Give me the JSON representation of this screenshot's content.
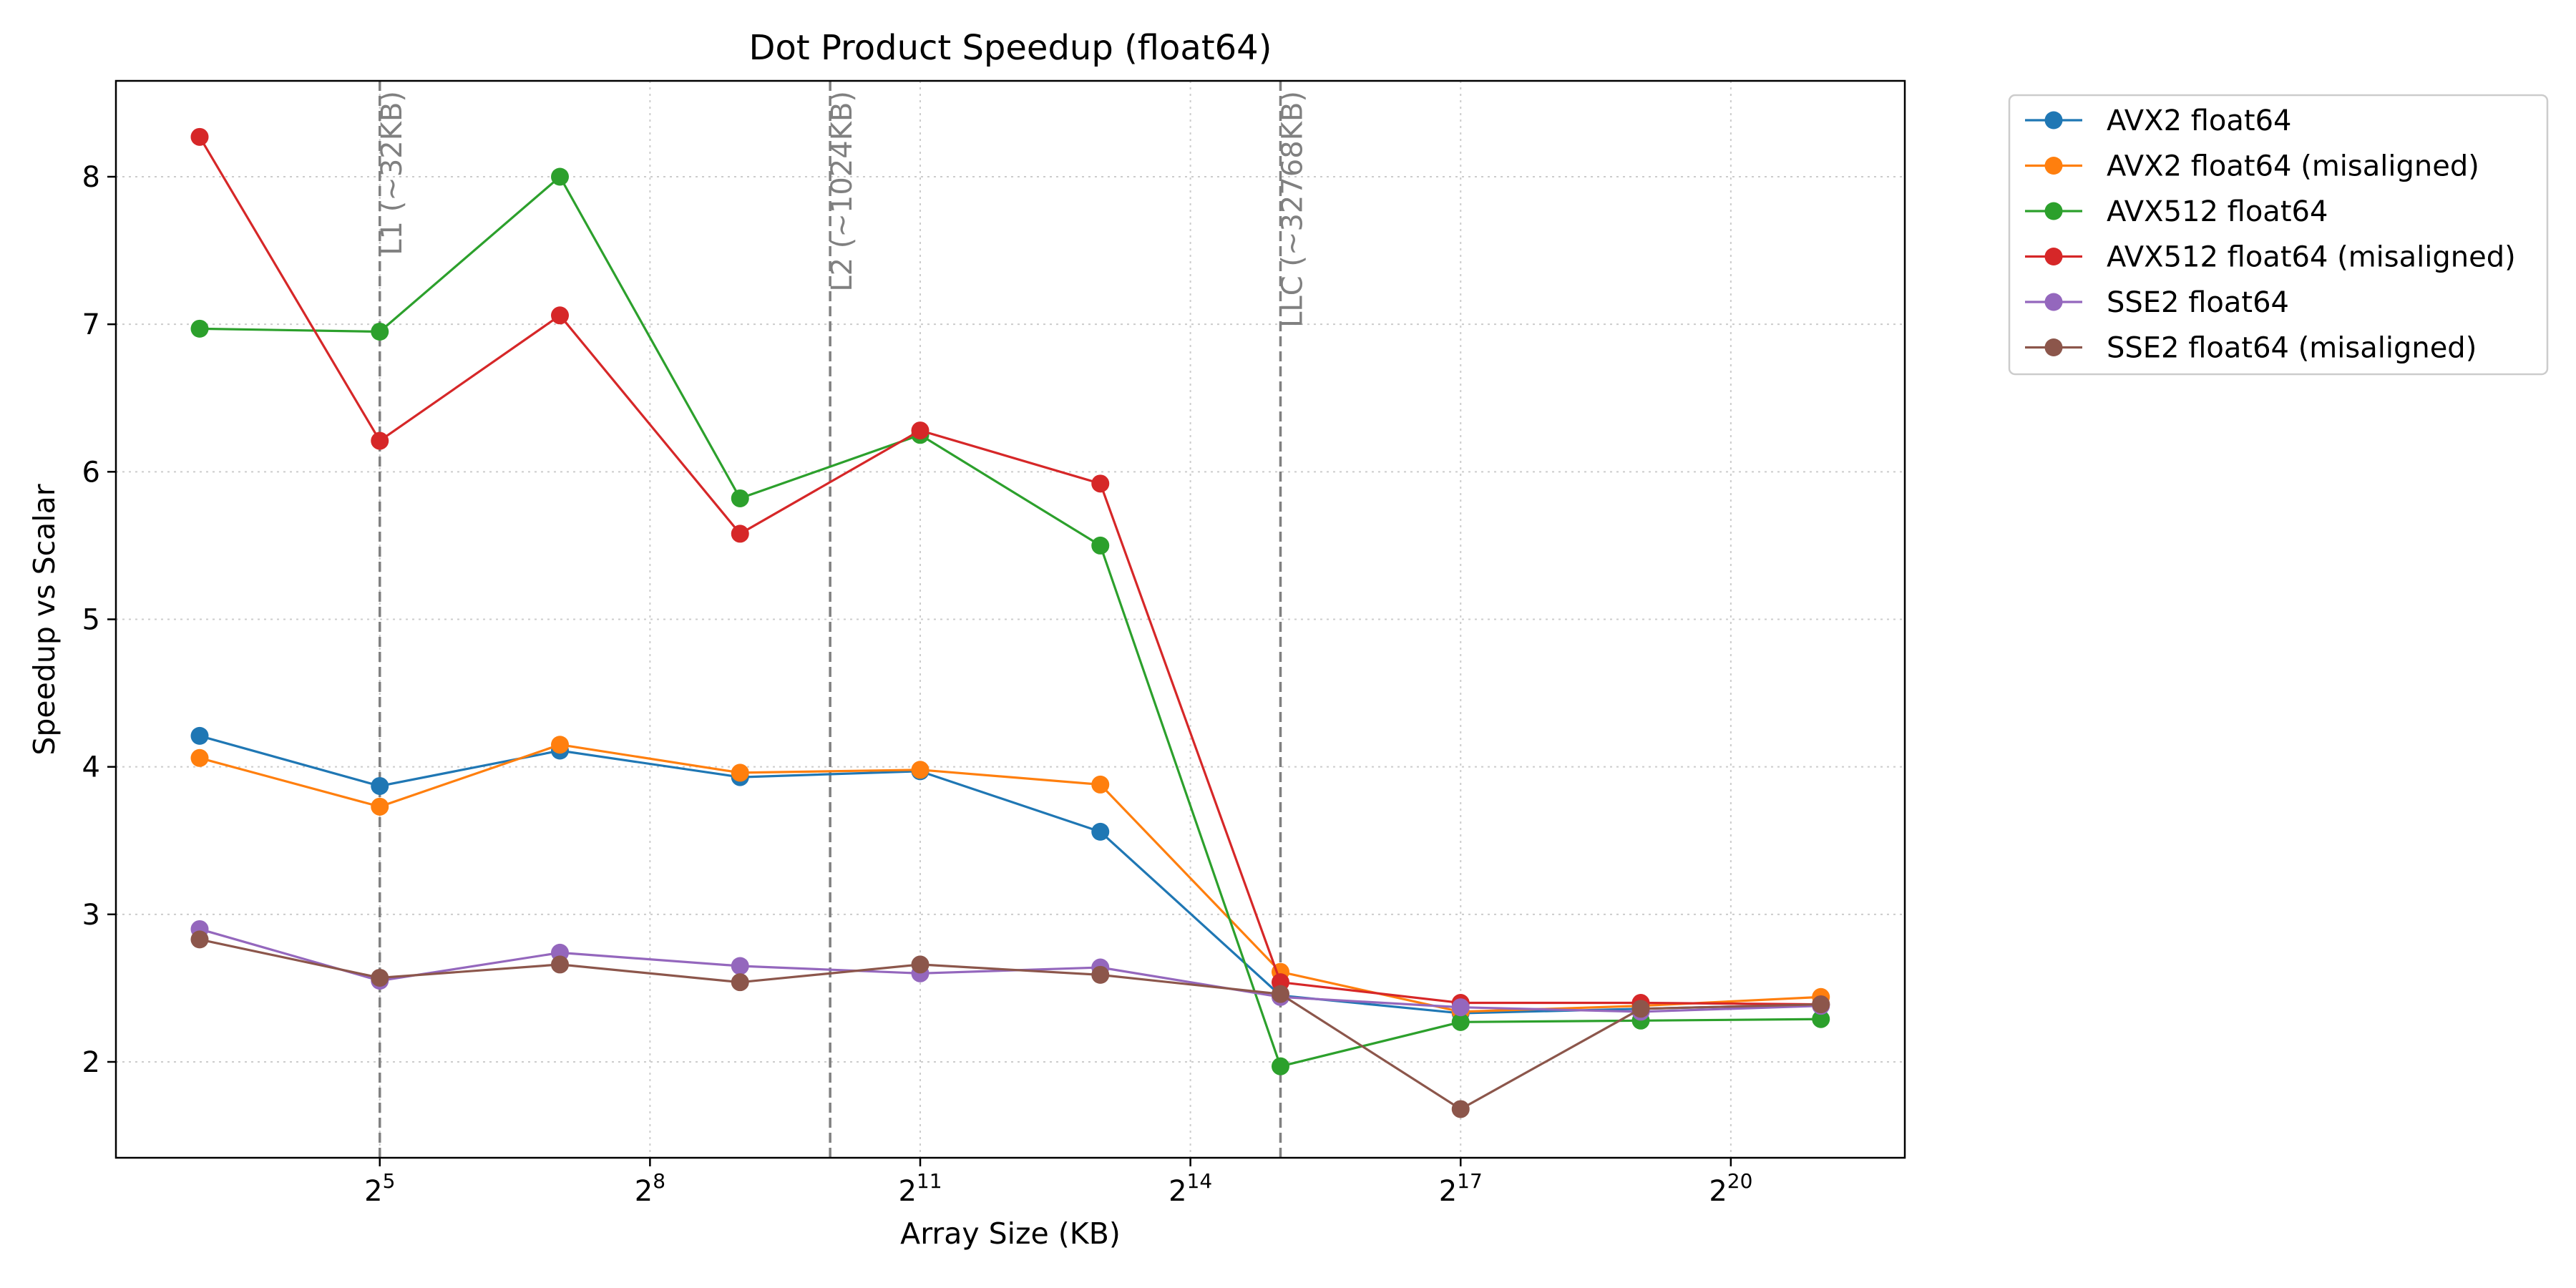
{
  "chart_data": {
    "type": "line",
    "title": "Dot Product Speedup (float64)",
    "xlabel": "Array Size (KB)",
    "ylabel": "Speedup vs Scalar",
    "xscale": "log2",
    "x": [
      8,
      32,
      128,
      512,
      2048,
      8192,
      32768,
      131072,
      524288,
      2097152
    ],
    "xlim": [
      4.2,
      4000000
    ],
    "ylim": [
      1.35,
      8.65
    ],
    "xticks": [
      {
        "base": "2",
        "exp": "5",
        "value": 32
      },
      {
        "base": "2",
        "exp": "8",
        "value": 256
      },
      {
        "base": "2",
        "exp": "11",
        "value": 2048
      },
      {
        "base": "2",
        "exp": "14",
        "value": 16384
      },
      {
        "base": "2",
        "exp": "17",
        "value": 131072
      },
      {
        "base": "2",
        "exp": "20",
        "value": 1048576
      }
    ],
    "yticks": [
      2,
      3,
      4,
      5,
      6,
      7,
      8
    ],
    "grid": true,
    "legend_position": "outside-top-right",
    "reference_lines": [
      {
        "x": 32,
        "label": "L1 (~32KB)"
      },
      {
        "x": 1024,
        "label": "L2 (~1024KB)"
      },
      {
        "x": 32768,
        "label": "LLC (~32768KB)"
      }
    ],
    "series": [
      {
        "name": "AVX2 float64",
        "color": "#1f77b4",
        "values": [
          4.21,
          3.87,
          4.11,
          3.93,
          3.97,
          3.56,
          2.45,
          2.33,
          2.36,
          2.39
        ]
      },
      {
        "name": "AVX2 float64 (misaligned)",
        "color": "#ff7f0e",
        "values": [
          4.06,
          3.73,
          4.15,
          3.96,
          3.98,
          3.88,
          2.61,
          2.34,
          2.38,
          2.44
        ]
      },
      {
        "name": "AVX512 float64",
        "color": "#2ca02c",
        "values": [
          6.97,
          6.95,
          8.0,
          5.82,
          6.25,
          5.5,
          1.97,
          2.27,
          2.28,
          2.29
        ]
      },
      {
        "name": "AVX512 float64 (misaligned)",
        "color": "#d62728",
        "values": [
          8.27,
          6.21,
          7.06,
          5.58,
          6.28,
          5.92,
          2.54,
          2.4,
          2.4,
          2.39
        ]
      },
      {
        "name": "SSE2 float64",
        "color": "#9467bd",
        "values": [
          2.9,
          2.55,
          2.74,
          2.65,
          2.6,
          2.64,
          2.44,
          2.37,
          2.34,
          2.38
        ]
      },
      {
        "name": "SSE2 float64 (misaligned)",
        "color": "#8c564b",
        "values": [
          2.83,
          2.57,
          2.66,
          2.54,
          2.66,
          2.59,
          2.46,
          1.68,
          2.36,
          2.39
        ]
      }
    ]
  }
}
